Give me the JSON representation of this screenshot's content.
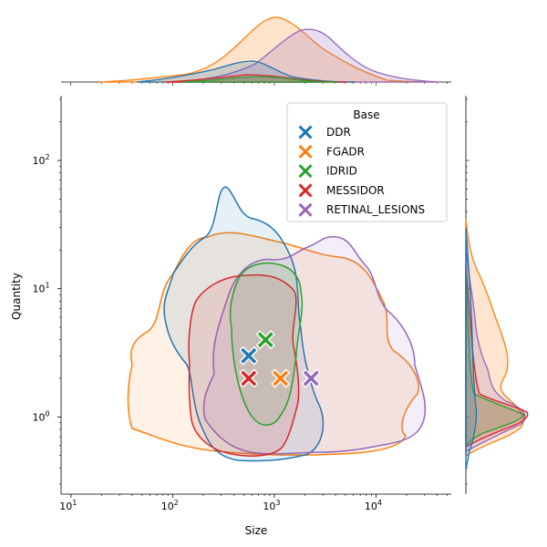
{
  "chart_data": {
    "type": "scatter",
    "xlabel": "Size",
    "ylabel": "Quantity",
    "x_scale": "log",
    "y_scale": "log",
    "xlim": [
      8,
      55000
    ],
    "ylim": [
      0.25,
      320
    ],
    "x_ticks": [
      {
        "value": 10,
        "base": "10",
        "exp": "1"
      },
      {
        "value": 100,
        "base": "10",
        "exp": "2"
      },
      {
        "value": 1000,
        "base": "10",
        "exp": "3"
      },
      {
        "value": 10000,
        "base": "10",
        "exp": "4"
      }
    ],
    "y_ticks": [
      {
        "value": 1,
        "base": "10",
        "exp": "0"
      },
      {
        "value": 10,
        "base": "10",
        "exp": "1"
      },
      {
        "value": 100,
        "base": "10",
        "exp": "2"
      }
    ],
    "legend": {
      "title": "Base",
      "position": "upper right",
      "entries": [
        "DDR",
        "FGADR",
        "IDRID",
        "MESSIDOR",
        "RETINAL_LESIONS"
      ]
    },
    "series": [
      {
        "name": "DDR",
        "color": "#1f77b4",
        "median_point": {
          "x": 560,
          "y": 3
        }
      },
      {
        "name": "FGADR",
        "color": "#ff7f0e",
        "median_point": {
          "x": 1150,
          "y": 2
        }
      },
      {
        "name": "IDRID",
        "color": "#2ca02c",
        "median_point": {
          "x": 820,
          "y": 4
        }
      },
      {
        "name": "MESSIDOR",
        "color": "#d62728",
        "median_point": {
          "x": 560,
          "y": 2
        }
      },
      {
        "name": "RETINAL_LESIONS",
        "color": "#9467bd",
        "median_point": {
          "x": 2300,
          "y": 2
        }
      }
    ],
    "marker": "X",
    "contours": "filled kde level per series",
    "marginals": "kde densities along x (top) and y (right)"
  }
}
